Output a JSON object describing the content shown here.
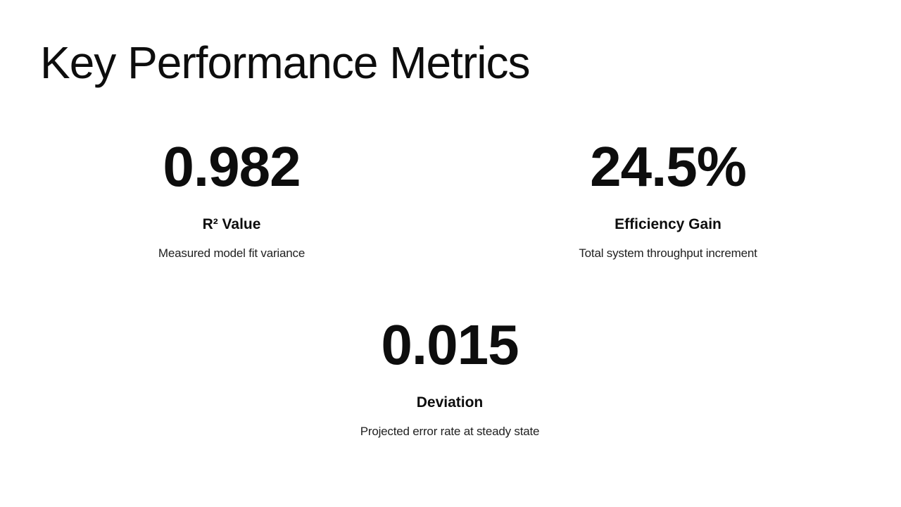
{
  "slide": {
    "title": "Key Performance Metrics"
  },
  "colors": {
    "background": "#ffffff",
    "text": "#0d0d0d",
    "description_text": "#212121"
  },
  "metrics": [
    {
      "value": "0.982",
      "label": "R² Value",
      "description": "Measured model fit variance"
    },
    {
      "value": "24.5%",
      "label": "Efficiency Gain",
      "description": "Total system throughput increment"
    },
    {
      "value": "0.015",
      "label": "Deviation",
      "description": "Projected error rate at steady state"
    }
  ]
}
